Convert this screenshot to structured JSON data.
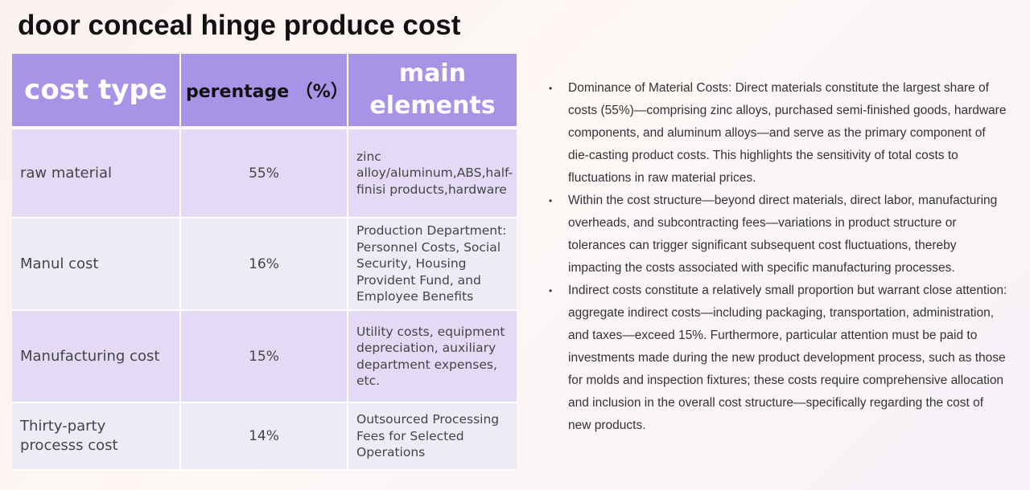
{
  "title": "door conceal hinge produce cost",
  "table": {
    "headers": {
      "type": "cost type",
      "percentage": "perentage （%）",
      "elements": "main elements"
    },
    "rows": [
      {
        "type": "raw material",
        "percentage": "55%",
        "elements": "zinc alloy/aluminum,ABS,half-finisi products,hardware"
      },
      {
        "type": "Manul cost",
        "percentage": "16%",
        "elements": "Production Department: Personnel Costs, Social Security, Housing Provident Fund, and Employee Benefits"
      },
      {
        "type": "Manufacturing cost",
        "percentage": "15%",
        "elements": "Utility costs, equipment depreciation, auxiliary department expenses, etc."
      },
      {
        "type": "Thirty-party processs cost",
        "percentage": "14%",
        "elements": "Outsourced Processing Fees for Selected Operations"
      }
    ]
  },
  "notes": {
    "bullet_icon": "bullet-dot-icon",
    "items": [
      "Dominance of Material Costs: Direct materials constitute the largest share of costs (55%)—comprising zinc alloys, purchased semi-finished goods, hardware components, and aluminum alloys—and serve as the primary component of die-casting product costs. This highlights the sensitivity of total costs to fluctuations in raw material prices.",
      "Within the cost structure—beyond direct materials, direct labor, manufacturing overheads, and subcontracting fees—variations in product structure or tolerances can trigger significant subsequent cost fluctuations, thereby impacting the costs associated with specific manufacturing processes.",
      "Indirect costs constitute a relatively small proportion but warrant close attention: aggregate indirect costs—including packaging, transportation, administration, and taxes—exceed 15%. Furthermore, particular attention must be paid to investments made during the new product development process, such as those for molds and inspection fixtures; these costs require comprehensive allocation and inclusion in the overall cost structure—specifically regarding the cost of new products."
    ]
  },
  "colors": {
    "header_bg": "#a794e6",
    "row_odd_bg": "#e3dbf6",
    "row_even_bg": "#efeaf8"
  }
}
